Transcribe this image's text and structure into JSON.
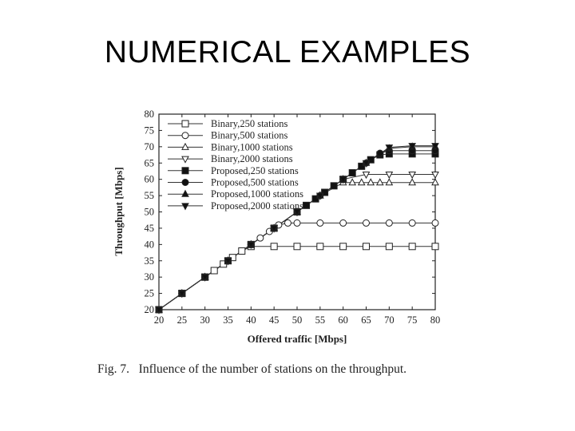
{
  "slide": {
    "title": "NUMERICAL EXAMPLES",
    "caption": "Fig. 7.   Influence of the number of stations on the throughput."
  },
  "chart_data": {
    "type": "line",
    "xlabel": "Offered traffic [Mbps]",
    "ylabel": "Throughput [Mbps]",
    "xlim": [
      20,
      80
    ],
    "ylim": [
      20,
      80
    ],
    "xticks": [
      20,
      25,
      30,
      35,
      40,
      45,
      50,
      55,
      60,
      65,
      70,
      75,
      80
    ],
    "yticks": [
      20,
      25,
      30,
      35,
      40,
      45,
      50,
      55,
      60,
      65,
      70,
      75,
      80
    ],
    "grid": false,
    "legend_position": "top-left",
    "series": [
      {
        "name": "Binary,250 stations",
        "marker": "square-open",
        "x": [
          20,
          25,
          30,
          32,
          34,
          36,
          38,
          40,
          45,
          50,
          55,
          60,
          65,
          70,
          75,
          80
        ],
        "y": [
          20,
          25,
          30,
          32,
          34,
          36,
          38,
          39.4,
          39.4,
          39.4,
          39.4,
          39.4,
          39.4,
          39.4,
          39.4,
          39.4
        ]
      },
      {
        "name": "Binary,500 stations",
        "marker": "circle-open",
        "x": [
          20,
          25,
          30,
          35,
          40,
          42,
          44,
          46,
          48,
          50,
          55,
          60,
          65,
          70,
          75,
          80
        ],
        "y": [
          20,
          25,
          30,
          35,
          40,
          42,
          44,
          46,
          46.6,
          46.6,
          46.6,
          46.6,
          46.6,
          46.6,
          46.6,
          46.6
        ]
      },
      {
        "name": "Binary,1000 stations",
        "marker": "triangle-up-open",
        "x": [
          20,
          25,
          30,
          35,
          40,
          45,
          50,
          55,
          60,
          62,
          64,
          66,
          68,
          70,
          75,
          80
        ],
        "y": [
          20,
          25,
          30,
          35,
          40,
          45,
          50,
          55,
          59,
          59,
          59,
          59,
          59,
          59,
          59,
          59
        ]
      },
      {
        "name": "Binary,2000 stations",
        "marker": "triangle-down-open",
        "x": [
          20,
          25,
          30,
          35,
          40,
          45,
          50,
          55,
          60,
          65,
          70,
          75,
          80
        ],
        "y": [
          20,
          25,
          30,
          35,
          40,
          45,
          50,
          55,
          60,
          61.5,
          61.5,
          61.5,
          61.5
        ]
      },
      {
        "name": "Proposed,250 stations",
        "marker": "square-filled",
        "x": [
          20,
          25,
          30,
          35,
          40,
          45,
          50,
          52,
          54,
          56,
          58,
          60,
          62,
          64,
          66,
          68,
          70,
          75,
          80
        ],
        "y": [
          20,
          25,
          30,
          35,
          40,
          45,
          50,
          52,
          54,
          56,
          58,
          60,
          62,
          64,
          66,
          67.5,
          67.8,
          67.8,
          67.8
        ]
      },
      {
        "name": "Proposed,500 stations",
        "marker": "circle-filled",
        "x": [
          20,
          25,
          30,
          35,
          40,
          45,
          50,
          55,
          60,
          65,
          68,
          70,
          75,
          80
        ],
        "y": [
          20,
          25,
          30,
          35,
          40,
          45,
          50,
          55,
          60,
          65,
          68,
          68.8,
          68.8,
          68.8
        ]
      },
      {
        "name": "Proposed,1000 stations",
        "marker": "triangle-up-filled",
        "x": [
          20,
          25,
          30,
          35,
          40,
          45,
          50,
          55,
          60,
          65,
          70,
          75,
          80
        ],
        "y": [
          20,
          25,
          30,
          35,
          40,
          45,
          50,
          55,
          60,
          65,
          69.5,
          70,
          70
        ]
      },
      {
        "name": "Proposed,2000 stations",
        "marker": "triangle-down-filled",
        "x": [
          20,
          25,
          30,
          35,
          40,
          45,
          50,
          55,
          60,
          65,
          70,
          75,
          80
        ],
        "y": [
          20,
          25,
          30,
          35,
          40,
          45,
          50,
          55,
          60,
          65,
          69.8,
          70.3,
          70.3
        ]
      }
    ]
  }
}
